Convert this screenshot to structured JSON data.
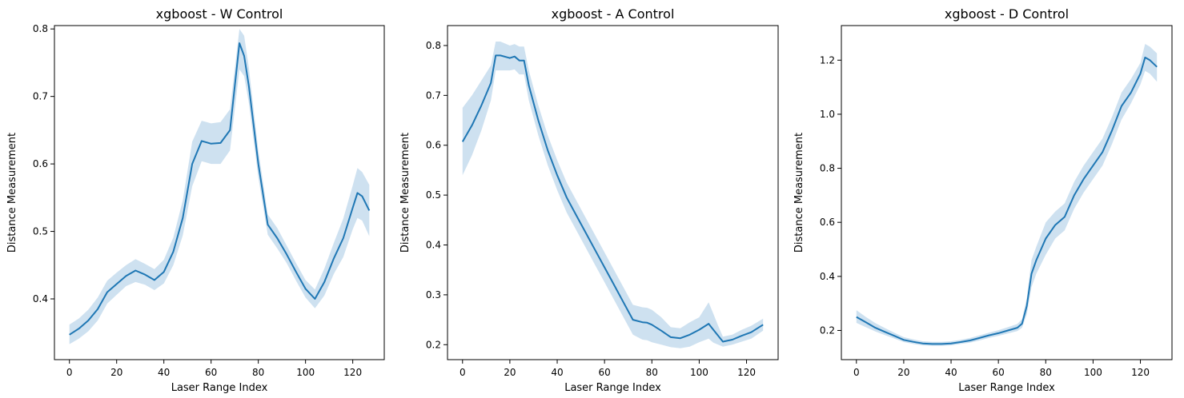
{
  "chart_data": [
    {
      "type": "line",
      "title": "xgboost - W Control",
      "xlabel": "Laser Range Index",
      "ylabel": "Distance Measurement",
      "xlim": [
        -6.35,
        133.35
      ],
      "ylim": [
        0.31,
        0.805
      ],
      "xticks": [
        0,
        20,
        40,
        60,
        80,
        100,
        120
      ],
      "yticks": [
        0.4,
        0.5,
        0.6,
        0.7,
        0.8
      ],
      "grid": false,
      "color": "#1f77b4",
      "band_color": "#a6c8e3",
      "series": [
        {
          "x": [
            0,
            4,
            8,
            12,
            16,
            20,
            24,
            28,
            32,
            36,
            40,
            44,
            48,
            52,
            56,
            60,
            64,
            68,
            72,
            74,
            76,
            80,
            84,
            88,
            92,
            96,
            100,
            104,
            108,
            112,
            116,
            120,
            122,
            124,
            127
          ],
          "y": [
            0.347,
            0.356,
            0.368,
            0.385,
            0.41,
            0.422,
            0.434,
            0.442,
            0.436,
            0.428,
            0.44,
            0.47,
            0.52,
            0.6,
            0.634,
            0.63,
            0.631,
            0.65,
            0.779,
            0.76,
            0.715,
            0.6,
            0.51,
            0.49,
            0.466,
            0.44,
            0.415,
            0.4,
            0.425,
            0.46,
            0.49,
            0.535,
            0.557,
            0.552,
            0.531
          ],
          "lower": [
            0.333,
            0.341,
            0.352,
            0.368,
            0.393,
            0.406,
            0.419,
            0.425,
            0.421,
            0.413,
            0.423,
            0.45,
            0.494,
            0.567,
            0.604,
            0.6,
            0.6,
            0.62,
            0.74,
            0.73,
            0.69,
            0.58,
            0.495,
            0.475,
            0.453,
            0.427,
            0.402,
            0.386,
            0.405,
            0.437,
            0.462,
            0.503,
            0.52,
            0.516,
            0.493
          ],
          "upper": [
            0.362,
            0.371,
            0.384,
            0.402,
            0.427,
            0.439,
            0.45,
            0.459,
            0.452,
            0.444,
            0.458,
            0.491,
            0.546,
            0.633,
            0.664,
            0.66,
            0.662,
            0.681,
            0.8,
            0.79,
            0.742,
            0.62,
            0.525,
            0.505,
            0.479,
            0.453,
            0.428,
            0.414,
            0.445,
            0.483,
            0.519,
            0.568,
            0.594,
            0.588,
            0.569
          ]
        }
      ]
    },
    {
      "type": "line",
      "title": "xgboost - A Control",
      "xlabel": "Laser Range Index",
      "ylabel": "Distance Measurement",
      "xlim": [
        -6.35,
        133.35
      ],
      "ylim": [
        0.17,
        0.84
      ],
      "xticks": [
        0,
        20,
        40,
        60,
        80,
        100,
        120
      ],
      "yticks": [
        0.2,
        0.3,
        0.4,
        0.5,
        0.6,
        0.7,
        0.8
      ],
      "grid": false,
      "color": "#1f77b4",
      "band_color": "#a6c8e3",
      "series": [
        {
          "x": [
            0,
            4,
            8,
            12,
            14,
            16,
            20,
            22,
            24,
            26,
            28,
            32,
            36,
            40,
            44,
            48,
            52,
            56,
            60,
            64,
            68,
            72,
            76,
            78,
            80,
            84,
            88,
            92,
            96,
            100,
            104,
            106,
            108,
            110,
            114,
            118,
            122,
            127
          ],
          "y": [
            0.607,
            0.64,
            0.68,
            0.725,
            0.78,
            0.78,
            0.775,
            0.778,
            0.77,
            0.77,
            0.72,
            0.65,
            0.59,
            0.54,
            0.495,
            0.46,
            0.425,
            0.39,
            0.355,
            0.32,
            0.285,
            0.25,
            0.245,
            0.244,
            0.24,
            0.228,
            0.215,
            0.213,
            0.22,
            0.23,
            0.242,
            0.23,
            0.218,
            0.206,
            0.21,
            0.218,
            0.225,
            0.24
          ],
          "lower": [
            0.54,
            0.58,
            0.63,
            0.69,
            0.75,
            0.75,
            0.75,
            0.752,
            0.742,
            0.742,
            0.69,
            0.62,
            0.56,
            0.51,
            0.465,
            0.43,
            0.395,
            0.36,
            0.325,
            0.29,
            0.255,
            0.22,
            0.21,
            0.209,
            0.205,
            0.2,
            0.195,
            0.193,
            0.196,
            0.205,
            0.212,
            0.204,
            0.2,
            0.196,
            0.2,
            0.206,
            0.212,
            0.228
          ],
          "upper": [
            0.675,
            0.7,
            0.73,
            0.76,
            0.808,
            0.808,
            0.8,
            0.803,
            0.798,
            0.798,
            0.75,
            0.68,
            0.62,
            0.57,
            0.525,
            0.49,
            0.455,
            0.42,
            0.385,
            0.35,
            0.315,
            0.28,
            0.275,
            0.274,
            0.27,
            0.255,
            0.235,
            0.233,
            0.245,
            0.255,
            0.285,
            0.262,
            0.238,
            0.216,
            0.22,
            0.23,
            0.238,
            0.252
          ]
        }
      ]
    },
    {
      "type": "line",
      "title": "xgboost - D Control",
      "xlabel": "Laser Range Index",
      "ylabel": "Distance Measurement",
      "xlim": [
        -6.35,
        133.35
      ],
      "ylim": [
        0.092,
        1.328
      ],
      "xticks": [
        0,
        20,
        40,
        60,
        80,
        100,
        120
      ],
      "yticks": [
        0.2,
        0.4,
        0.6,
        0.8,
        1.0,
        1.2
      ],
      "grid": false,
      "color": "#1f77b4",
      "band_color": "#a6c8e3",
      "series": [
        {
          "x": [
            0,
            4,
            8,
            12,
            16,
            20,
            24,
            28,
            32,
            36,
            40,
            44,
            48,
            52,
            56,
            60,
            64,
            68,
            70,
            72,
            74,
            76,
            80,
            84,
            88,
            92,
            96,
            100,
            104,
            108,
            112,
            116,
            120,
            122,
            124,
            127
          ],
          "y": [
            0.25,
            0.23,
            0.21,
            0.195,
            0.18,
            0.165,
            0.158,
            0.152,
            0.15,
            0.15,
            0.152,
            0.157,
            0.163,
            0.172,
            0.182,
            0.19,
            0.2,
            0.21,
            0.225,
            0.29,
            0.41,
            0.46,
            0.54,
            0.59,
            0.62,
            0.7,
            0.76,
            0.81,
            0.86,
            0.94,
            1.03,
            1.08,
            1.15,
            1.21,
            1.2,
            1.175
          ],
          "lower": [
            0.228,
            0.212,
            0.196,
            0.183,
            0.17,
            0.157,
            0.15,
            0.145,
            0.143,
            0.143,
            0.145,
            0.15,
            0.155,
            0.163,
            0.172,
            0.18,
            0.189,
            0.198,
            0.21,
            0.26,
            0.36,
            0.41,
            0.48,
            0.54,
            0.57,
            0.65,
            0.71,
            0.76,
            0.81,
            0.89,
            0.98,
            1.04,
            1.11,
            1.16,
            1.15,
            1.12
          ],
          "upper": [
            0.275,
            0.25,
            0.227,
            0.209,
            0.192,
            0.175,
            0.167,
            0.16,
            0.158,
            0.158,
            0.16,
            0.165,
            0.172,
            0.182,
            0.192,
            0.201,
            0.212,
            0.224,
            0.242,
            0.32,
            0.46,
            0.51,
            0.6,
            0.64,
            0.67,
            0.75,
            0.81,
            0.86,
            0.91,
            0.99,
            1.08,
            1.13,
            1.19,
            1.26,
            1.25,
            1.225
          ]
        }
      ]
    }
  ]
}
